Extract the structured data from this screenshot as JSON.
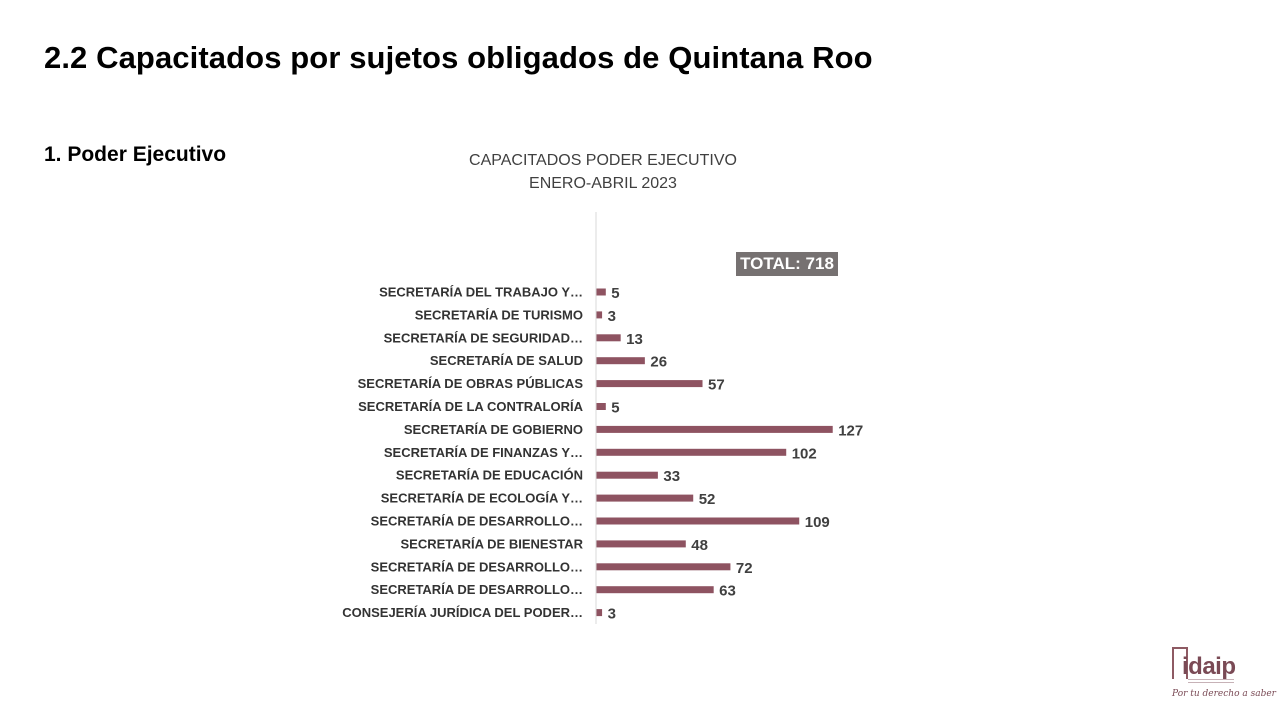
{
  "slide": {
    "title": "2.2 Capacitados por sujetos obligados de Quintana Roo",
    "section": "1. Poder Ejecutivo"
  },
  "chart_data": {
    "type": "bar",
    "orientation": "horizontal",
    "title": "CAPACITADOS PODER EJECUTIVO",
    "subtitle": "ENERO-ABRIL 2023",
    "categories": [
      "SECRETARÍA DEL TRABAJO Y…",
      "SECRETARÍA DE TURISMO",
      "SECRETARÍA DE SEGURIDAD…",
      "SECRETARÍA DE SALUD",
      "SECRETARÍA DE OBRAS PÚBLICAS",
      "SECRETARÍA DE LA CONTRALORÍA",
      "SECRETARÍA DE GOBIERNO",
      "SECRETARÍA DE FINANZAS Y…",
      "SECRETARÍA DE EDUCACIÓN",
      "SECRETARÍA DE ECOLOGÍA Y…",
      "SECRETARÍA DE DESARROLLO…",
      "SECRETARÍA DE BIENESTAR",
      "SECRETARÍA DE DESARROLLO…",
      "SECRETARÍA DE DESARROLLO…",
      "CONSEJERÍA JURÍDICA DEL PODER…"
    ],
    "values": [
      5,
      3,
      13,
      26,
      57,
      5,
      127,
      102,
      33,
      52,
      109,
      48,
      72,
      63,
      3
    ],
    "annotation": "TOTAL: 718",
    "bar_color": "#8e5361",
    "grid": false,
    "legend": "none"
  },
  "logo": {
    "brand": "idaip",
    "tagline": "Por tu derecho a saber"
  }
}
